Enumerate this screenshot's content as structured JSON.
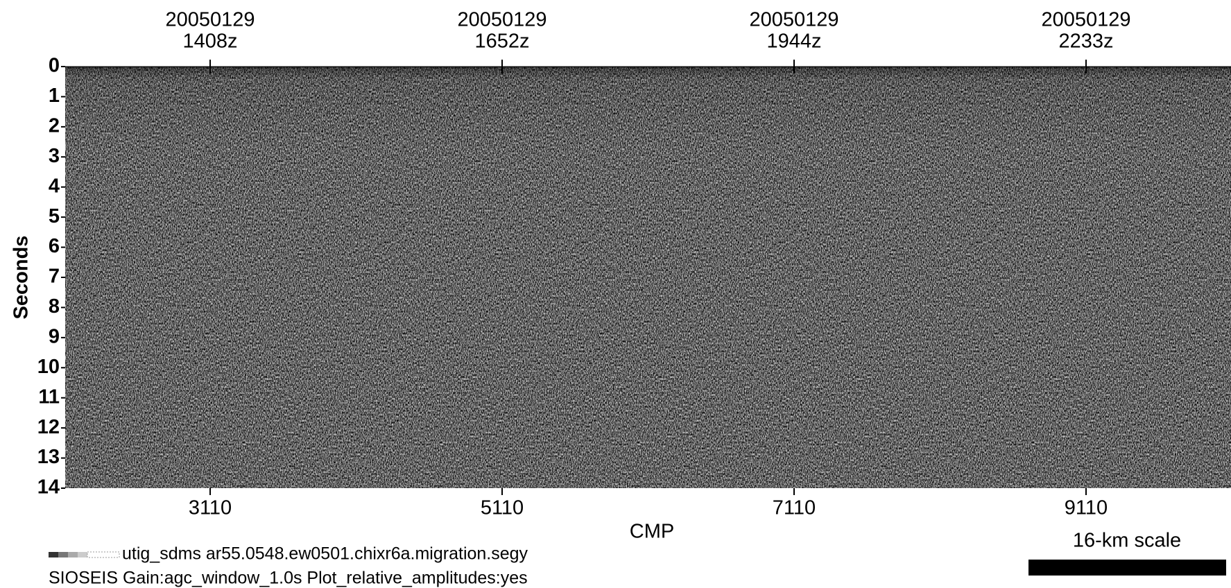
{
  "chart_data": {
    "type": "seismic",
    "xlabel": "CMP",
    "ylabel": "Seconds",
    "xlim": [
      2117,
      10103
    ],
    "xticks": [
      3110,
      5110,
      7110,
      9110
    ],
    "ylim": [
      0,
      14
    ],
    "yticks": [
      0,
      1,
      2,
      3,
      4,
      5,
      6,
      7,
      8,
      9,
      10,
      11,
      12,
      13,
      14
    ],
    "y_reversed": true,
    "top_ticks": [
      {
        "value": 3110,
        "date": "20050129",
        "time": "1408z"
      },
      {
        "value": 5110,
        "date": "20050129",
        "time": "1652z"
      },
      {
        "value": 7110,
        "date": "20050129",
        "time": "1944z"
      },
      {
        "value": 9110,
        "date": "20050129",
        "time": "2233z"
      }
    ],
    "file_label": "utig_sdms ar55.0548.ew0501.chixr6a.migration.segy",
    "processing_label": "SIOSEIS Gain:agc_window_1.0s Plot_relative_amplitudes:yes",
    "scale_label": "16-km scale"
  }
}
